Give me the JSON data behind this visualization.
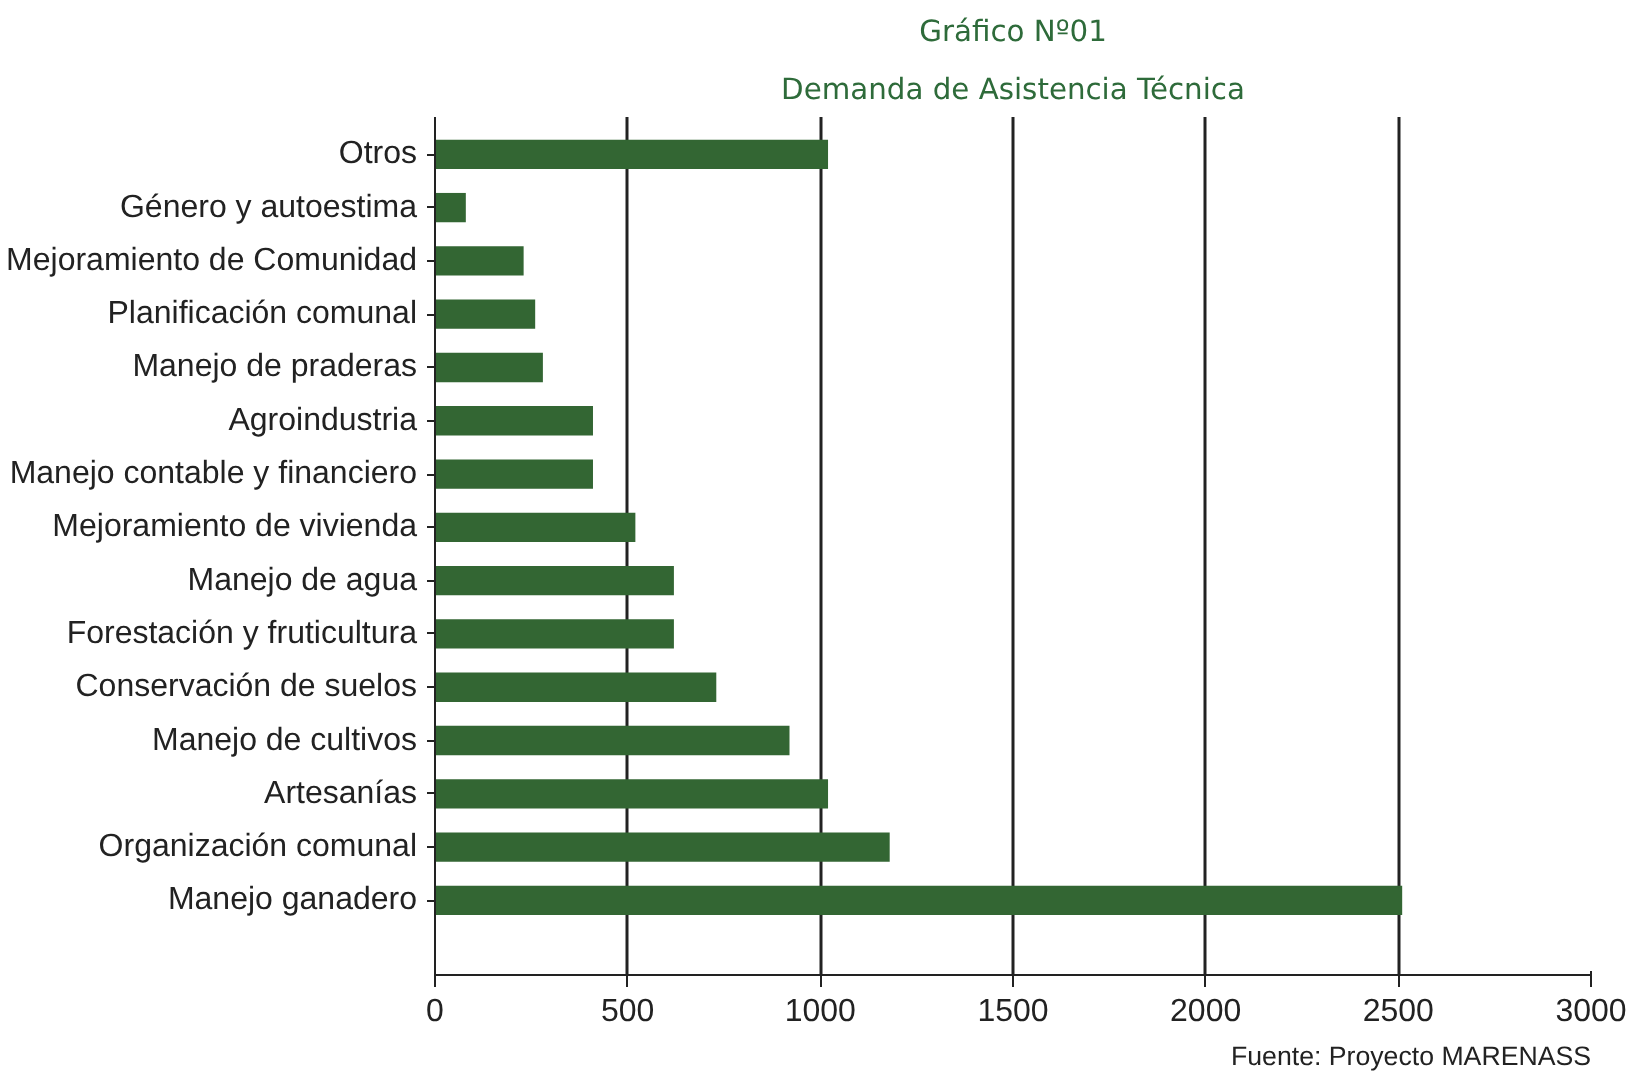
{
  "chart_data": {
    "type": "bar",
    "orientation": "horizontal",
    "title": "Gráfico Nº01",
    "subtitle": "Demanda de Asistencia Técnica",
    "categories": [
      "Otros",
      "Género y autoestima",
      "Mejoramiento de Comunidad",
      "Planificación comunal",
      "Manejo de praderas",
      "Agroindustria",
      "Manejo contable y financiero",
      "Mejoramiento de vivienda",
      "Manejo de agua",
      "Forestación y fruticultura",
      "Conservación de suelos",
      "Manejo de cultivos",
      "Artesanías",
      "Organización comunal",
      "Manejo ganadero"
    ],
    "values": [
      1020,
      80,
      230,
      260,
      280,
      410,
      410,
      520,
      620,
      620,
      730,
      920,
      1020,
      1180,
      2510
    ],
    "color": "#336633",
    "xlim": [
      0,
      3000
    ],
    "xticks": [
      0,
      500,
      1000,
      1500,
      2000,
      2500,
      3000
    ],
    "grid": "x",
    "annotations": [
      "Fuente: Proyecto MARENASS"
    ]
  }
}
